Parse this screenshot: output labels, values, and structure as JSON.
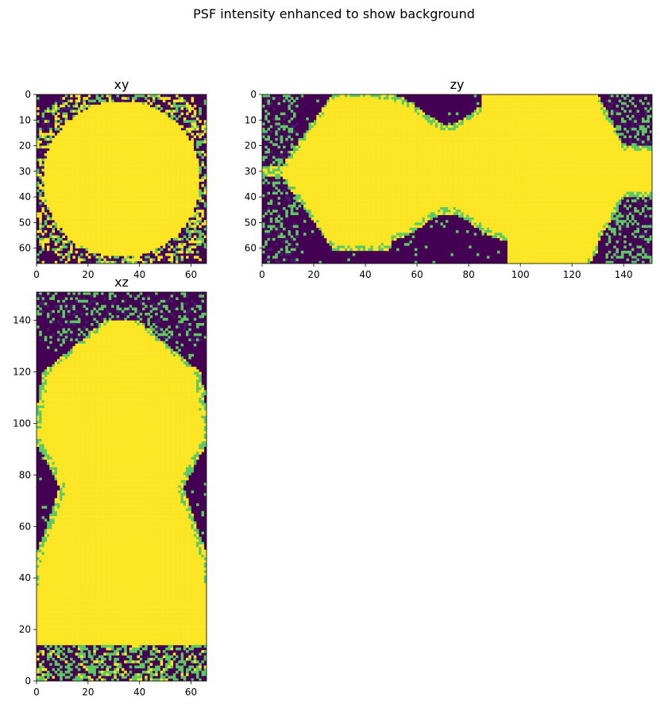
{
  "figure": {
    "title": "PSF intensity enhanced to show background"
  },
  "colors": {
    "viridis_low": "#440154",
    "viridis_low2": "#481a6c",
    "viridis_mid": "#5ec962",
    "viridis_midlight": "#a0da39",
    "viridis_high": "#fde725",
    "axis": "#000000",
    "background": "#ffffff"
  },
  "chart_data": [
    {
      "type": "heatmap",
      "title": "xy",
      "xlabel": "",
      "ylabel": "",
      "colormap": "viridis",
      "grid": false,
      "shape": [
        66,
        66
      ],
      "xlim": [
        0,
        66
      ],
      "ylim": [
        66,
        0
      ],
      "y_axis_inverted": true,
      "xticks": [
        0,
        20,
        40,
        60
      ],
      "yticks": [
        0,
        10,
        20,
        30,
        40,
        50,
        60
      ],
      "description_of_values": "Saturated (high) disk filling most of the frame, center near (33, 33), radius about 32; low background with mid-level noise pixels in the corners."
    },
    {
      "type": "heatmap",
      "title": "zy",
      "xlabel": "",
      "ylabel": "",
      "colormap": "viridis",
      "grid": false,
      "shape": [
        66,
        151
      ],
      "xlim": [
        0,
        151
      ],
      "ylim": [
        66,
        0
      ],
      "y_axis_inverted": true,
      "xticks": [
        0,
        20,
        40,
        60,
        80,
        100,
        120,
        140
      ],
      "yticks": [
        0,
        10,
        20,
        30,
        40,
        50,
        60
      ],
      "description_of_values": "Saturated bow-tie shaped band across z from about 12 to 135; narrow waist near z 60-85; low background with mid-level noise at left and right ends."
    },
    {
      "type": "heatmap",
      "title": "xz",
      "xlabel": "",
      "ylabel": "",
      "colormap": "viridis",
      "grid": false,
      "shape": [
        151,
        66
      ],
      "xlim": [
        0,
        66
      ],
      "ylim": [
        0,
        151
      ],
      "y_axis_inverted": false,
      "xticks": [
        0,
        20,
        40,
        60
      ],
      "yticks": [
        0,
        20,
        40,
        60,
        80,
        100,
        120,
        140
      ],
      "description_of_values": "Saturated hourglass shape from z about 15 to 138, waist near z 60-80; low background with mid-level noise near z 0-25 and at the top."
    }
  ]
}
